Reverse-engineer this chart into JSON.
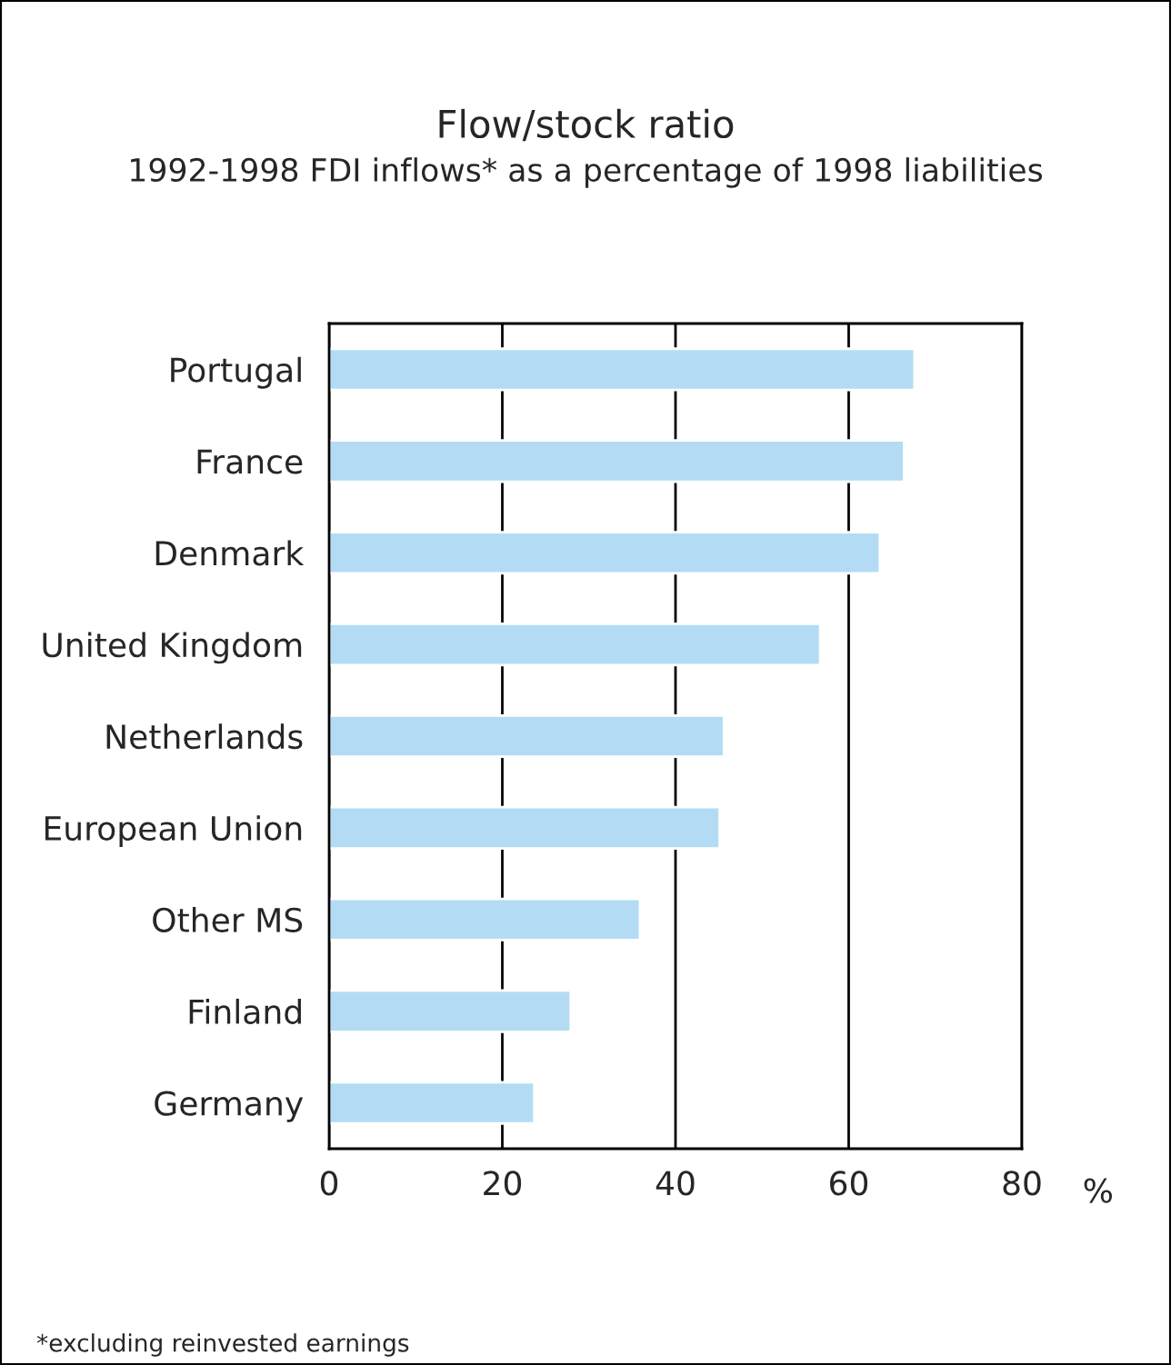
{
  "chart_data": {
    "type": "bar",
    "orientation": "horizontal",
    "title": "Flow/stock ratio",
    "subtitle": "1992-1998 FDI inflows* as a percentage of 1998 liabilities",
    "categories": [
      "Portugal",
      "France",
      "Denmark",
      "United Kingdom",
      "Netherlands",
      "European Union",
      "Other MS",
      "Finland",
      "Germany"
    ],
    "values": [
      67.6,
      66.4,
      63.6,
      56.7,
      45.6,
      45.1,
      35.9,
      27.9,
      23.7
    ],
    "color": "#b3dcf4",
    "xlim": [
      0,
      80
    ],
    "xticks": [
      0,
      20,
      40,
      60,
      80
    ],
    "xlabel": "%",
    "grid": "x",
    "annotations": [
      "*excluding reinvested earnings"
    ]
  }
}
